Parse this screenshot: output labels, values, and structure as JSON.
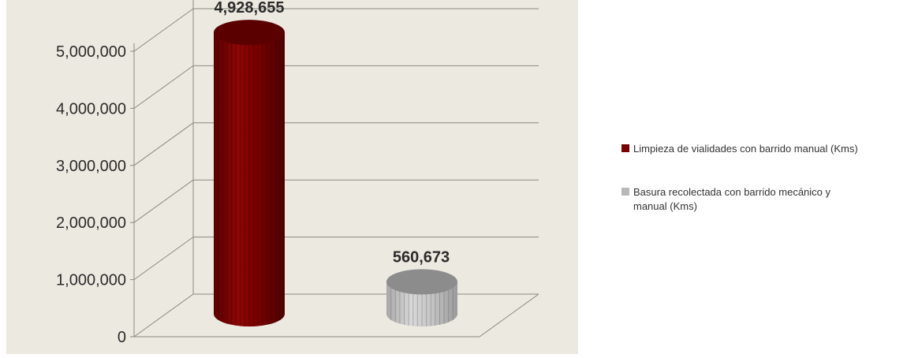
{
  "chart_data": {
    "type": "bar",
    "style": "3d-cylinder",
    "title": "",
    "xlabel": "",
    "ylabel": "",
    "ylim": [
      0,
      5000000
    ],
    "yticks": [
      0,
      1000000,
      2000000,
      3000000,
      4000000,
      5000000
    ],
    "ytick_labels": [
      "0",
      "1,000,000",
      "2,000,000",
      "3,000,000",
      "4,000,000",
      "5,000,000"
    ],
    "grid": true,
    "legend_position": "right",
    "series": [
      {
        "legend_lines": [
          "Limpieza de vialidades con barrido manual (Kms)"
        ],
        "value": 4928655,
        "value_label": "4,928,655",
        "color": "#7a0000"
      },
      {
        "legend_lines": [
          "Basura recolectada con barrido mecánico y",
          "manual (Kms)"
        ],
        "value": 560673,
        "value_label": "560,673",
        "color": "#b8b8b8"
      }
    ],
    "colors": {
      "plot_background": "#ece9e0",
      "gridline": "#8a8a80",
      "series_1_dark": "#5a0000",
      "series_1_light": "#a01818",
      "series_2_dark": "#8c8c8c",
      "series_2_light": "#d6d6d6"
    }
  }
}
